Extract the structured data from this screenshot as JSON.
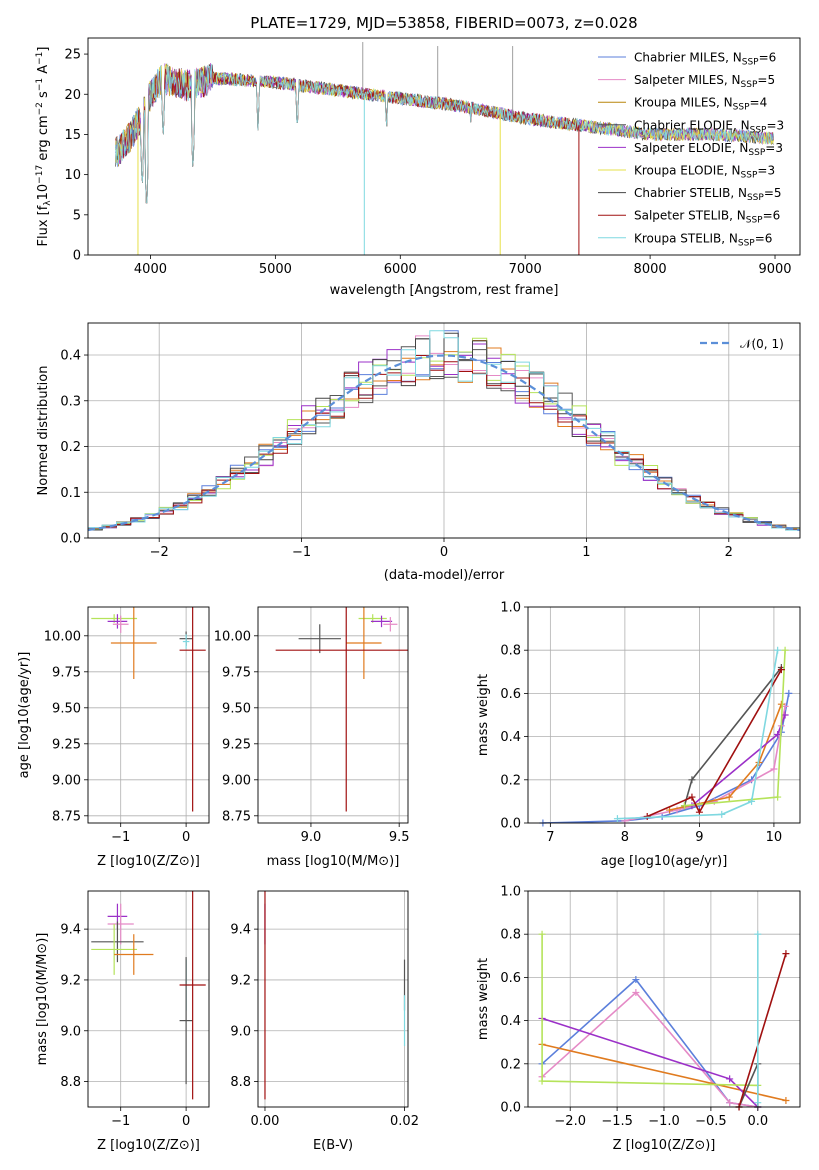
{
  "figure_title": "PLATE=1729, MJD=53858, FIBERID=0073, z=0.028",
  "colors": {
    "chabrier_miles": "#5b7fdb",
    "salpeter_miles": "#e58ac6",
    "kroupa_miles": "#b8860b",
    "chabrier_elodie": "#555555",
    "salpeter_elodie": "#9b30c8",
    "kroupa_elodie": "#e6e04a",
    "chabrier_stelib": "#444444",
    "salpeter_stelib": "#a01010",
    "kroupa_stelib": "#7fd8e0",
    "orange": "#e07b1f",
    "lime": "#b5e35a",
    "gauss": "#5b8fd8",
    "grid": "#b0b0b0"
  },
  "chart_data": [
    {
      "id": "spectrum",
      "type": "line",
      "title": "PLATE=1729, MJD=53858, FIBERID=0073, z=0.028",
      "xlabel": "wavelength [Angstrom, rest frame]",
      "ylabel": "Flux [f_λ 10^-17 erg cm^-2 s^-1 A^-1]",
      "xlim": [
        3500,
        9200
      ],
      "ylim": [
        0,
        27
      ],
      "xticks": [
        "4000",
        "5000",
        "6000",
        "7000",
        "8000",
        "9000"
      ],
      "yticks": [
        "0",
        "5",
        "10",
        "15",
        "20",
        "25"
      ],
      "grid": false,
      "legend_position": "top-right",
      "legend": [
        {
          "main": "Chabrier MILES, N",
          "sub": "SSP",
          "tail": "=6",
          "color": "#5b7fdb"
        },
        {
          "main": "Salpeter MILES, N",
          "sub": "SSP",
          "tail": "=5",
          "color": "#e58ac6"
        },
        {
          "main": "Kroupa MILES, N",
          "sub": "SSP",
          "tail": "=4",
          "color": "#b8860b"
        },
        {
          "main": "Chabrier ELODIE, N",
          "sub": "SSP",
          "tail": "=3",
          "color": "#555555"
        },
        {
          "main": "Salpeter ELODIE, N",
          "sub": "SSP",
          "tail": "=3",
          "color": "#9b30c8"
        },
        {
          "main": "Kroupa ELODIE, N",
          "sub": "SSP",
          "tail": "=3",
          "color": "#e6e04a"
        },
        {
          "main": "Chabrier STELIB, N",
          "sub": "SSP",
          "tail": "=5",
          "color": "#444444"
        },
        {
          "main": "Salpeter STELIB, N",
          "sub": "SSP",
          "tail": "=6",
          "color": "#a01010"
        },
        {
          "main": "Kroupa STELIB, N",
          "sub": "SSP",
          "tail": "=6",
          "color": "#7fd8e0"
        }
      ],
      "continuum": [
        [
          3750,
          13
        ],
        [
          3850,
          15
        ],
        [
          3950,
          18
        ],
        [
          4000,
          20
        ],
        [
          4100,
          22
        ],
        [
          4300,
          21
        ],
        [
          4500,
          22
        ],
        [
          5000,
          21.5
        ],
        [
          5500,
          20.5
        ],
        [
          6000,
          19.5
        ],
        [
          6500,
          18.5
        ],
        [
          7000,
          17
        ],
        [
          7500,
          16
        ],
        [
          8000,
          15
        ],
        [
          8500,
          15
        ],
        [
          9000,
          14.5
        ]
      ],
      "absorption_lines": [
        [
          3934,
          8
        ],
        [
          3969,
          5
        ],
        [
          4102,
          14
        ],
        [
          4340,
          10
        ],
        [
          4861,
          15
        ],
        [
          5175,
          15
        ],
        [
          5890,
          15
        ],
        [
          6563,
          16
        ]
      ],
      "spikes_down": [
        [
          3900,
          0
        ],
        [
          5712,
          0
        ],
        [
          6800,
          0
        ],
        [
          7430,
          0
        ]
      ],
      "spikes_up": [
        [
          5700,
          26.5
        ],
        [
          6300,
          26
        ],
        [
          6900,
          26
        ]
      ]
    },
    {
      "id": "residuals",
      "type": "histogram",
      "xlabel": "(data-model)/error",
      "ylabel": "Normed distribution",
      "xlim": [
        -2.5,
        2.5
      ],
      "ylim": [
        0,
        0.47
      ],
      "xticks": [
        "−2",
        "−1",
        "0",
        "1",
        "2"
      ],
      "yticks": [
        "0.0",
        "0.1",
        "0.2",
        "0.3",
        "0.4"
      ],
      "grid": true,
      "legend_position": "top-right",
      "legend": [
        {
          "label": "𝒩(0, 1)",
          "color": "#5b8fd8",
          "dashed": true
        }
      ],
      "bin_width": 0.1,
      "bin_start": -2.5,
      "series_colors": [
        "#5b7fdb",
        "#e58ac6",
        "#e07b1f",
        "#555555",
        "#9b30c8",
        "#b5e35a",
        "#444444",
        "#a01010",
        "#7fd8e0"
      ]
    },
    {
      "id": "age-vs-Z",
      "type": "scatter",
      "xlabel": "Z [log10(Z/Z⊙)]",
      "ylabel": "age [log10(age/yr)]",
      "xlim": [
        -1.5,
        0.35
      ],
      "ylim": [
        8.7,
        10.2
      ],
      "xticks": [
        "−1",
        "0"
      ],
      "yticks": [
        "8.75",
        "9.00",
        "9.25",
        "9.50",
        "9.75",
        "10.00"
      ],
      "grid": true,
      "points": [
        {
          "x": -1.1,
          "y": 10.12,
          "xerr": 0.35,
          "yerr": 0.03,
          "color": "#b5e35a"
        },
        {
          "x": -1.05,
          "y": 10.1,
          "xerr": 0.15,
          "yerr": 0.05,
          "color": "#9b30c8"
        },
        {
          "x": -1.0,
          "y": 10.08,
          "xerr": 0.12,
          "yerr": 0.06,
          "color": "#e58ac6"
        },
        {
          "x": -0.8,
          "y": 9.95,
          "xerr": 0.35,
          "yerr": 0.25,
          "color": "#e07b1f"
        },
        {
          "x": 0.0,
          "y": 9.98,
          "xerr": 0.1,
          "yerr": 0.05,
          "color": "#555555"
        },
        {
          "x": 0.0,
          "y": 9.96,
          "xerr": 0.05,
          "yerr": 0.05,
          "color": "#7fd8e0"
        },
        {
          "x": 0.1,
          "y": 9.9,
          "xerr": 0.2,
          "yerr": 1.12,
          "color": "#a01010"
        }
      ]
    },
    {
      "id": "age-vs-mass",
      "type": "scatter",
      "xlabel": "mass [log10(M/M⊙)]",
      "ylabel": "",
      "xlim": [
        8.7,
        9.55
      ],
      "ylim": [
        8.7,
        10.2
      ],
      "xticks": [
        "9.0",
        "9.5"
      ],
      "yticks": [
        "8.75",
        "9.00",
        "9.25",
        "9.50",
        "9.75",
        "10.00"
      ],
      "grid": true,
      "points": [
        {
          "x": 9.35,
          "y": 10.12,
          "xerr": 0.08,
          "yerr": 0.03,
          "color": "#b5e35a"
        },
        {
          "x": 9.4,
          "y": 10.1,
          "xerr": 0.06,
          "yerr": 0.04,
          "color": "#9b30c8"
        },
        {
          "x": 9.45,
          "y": 10.08,
          "xerr": 0.04,
          "yerr": 0.05,
          "color": "#e58ac6"
        },
        {
          "x": 9.3,
          "y": 9.95,
          "xerr": 0.1,
          "yerr": 0.25,
          "color": "#e07b1f"
        },
        {
          "x": 9.05,
          "y": 9.98,
          "xerr": 0.12,
          "yerr": 0.1,
          "color": "#555555"
        },
        {
          "x": 9.2,
          "y": 9.9,
          "xerr": 0.4,
          "yerr": 1.12,
          "color": "#a01010"
        }
      ]
    },
    {
      "id": "mass-weight-vs-age",
      "type": "line",
      "xlabel": "age [log10(age/yr)]",
      "ylabel": "mass weight",
      "xlim": [
        6.7,
        10.35
      ],
      "ylim": [
        0,
        1.0
      ],
      "xticks": [
        "7",
        "8",
        "9",
        "10"
      ],
      "yticks": [
        "0.0",
        "0.2",
        "0.4",
        "0.6",
        "0.8",
        "1.0"
      ],
      "grid": true,
      "series": [
        {
          "color": "#5b7fdb",
          "x": [
            6.9,
            8.0,
            8.5,
            9.0,
            9.7,
            10.1,
            10.2
          ],
          "y": [
            0.0,
            0.01,
            0.03,
            0.08,
            0.2,
            0.42,
            0.6
          ]
        },
        {
          "color": "#e58ac6",
          "x": [
            8.0,
            8.7,
            9.2,
            10.0,
            10.1,
            10.15
          ],
          "y": [
            0.01,
            0.06,
            0.1,
            0.25,
            0.45,
            0.54
          ]
        },
        {
          "color": "#e07b1f",
          "x": [
            8.6,
            9.4,
            9.8,
            10.1
          ],
          "y": [
            0.06,
            0.12,
            0.28,
            0.55
          ]
        },
        {
          "color": "#555555",
          "x": [
            8.8,
            8.9,
            10.1
          ],
          "y": [
            0.08,
            0.2,
            0.72
          ]
        },
        {
          "color": "#9b30c8",
          "x": [
            8.9,
            10.05,
            10.15
          ],
          "y": [
            0.08,
            0.41,
            0.5
          ]
        },
        {
          "color": "#b5e35a",
          "x": [
            8.8,
            10.05,
            10.15
          ],
          "y": [
            0.08,
            0.12,
            0.8
          ]
        },
        {
          "color": "#a01010",
          "x": [
            8.3,
            8.9,
            9.0,
            10.1
          ],
          "y": [
            0.03,
            0.12,
            0.05,
            0.71
          ]
        },
        {
          "color": "#7fd8e0",
          "x": [
            7.9,
            9.3,
            9.7,
            10.05
          ],
          "y": [
            0.02,
            0.04,
            0.1,
            0.8
          ]
        }
      ]
    },
    {
      "id": "mass-vs-Z",
      "type": "scatter",
      "xlabel": "Z [log10(Z/Z⊙)]",
      "ylabel": "mass [log10(M/M⊙)]",
      "xlim": [
        -1.5,
        0.35
      ],
      "ylim": [
        8.7,
        9.55
      ],
      "xticks": [
        "−1",
        "0"
      ],
      "yticks": [
        "8.8",
        "9.0",
        "9.2",
        "9.4"
      ],
      "grid": true,
      "points": [
        {
          "x": -1.05,
          "y": 9.45,
          "xerr": 0.15,
          "yerr": 0.05,
          "color": "#9b30c8"
        },
        {
          "x": -1.0,
          "y": 9.42,
          "xerr": 0.2,
          "yerr": 0.08,
          "color": "#e58ac6"
        },
        {
          "x": -1.05,
          "y": 9.35,
          "xerr": 0.4,
          "yerr": 0.08,
          "color": "#555555"
        },
        {
          "x": -1.1,
          "y": 9.32,
          "xerr": 0.35,
          "yerr": 0.1,
          "color": "#b5e35a"
        },
        {
          "x": -0.8,
          "y": 9.3,
          "xerr": 0.3,
          "yerr": 0.08,
          "color": "#e07b1f"
        },
        {
          "x": 0.0,
          "y": 9.18,
          "xerr": 0.05,
          "yerr": 0.1,
          "color": "#7fd8e0"
        },
        {
          "x": 0.0,
          "y": 9.04,
          "xerr": 0.1,
          "yerr": 0.25,
          "color": "#555555"
        },
        {
          "x": 0.1,
          "y": 9.18,
          "xerr": 0.2,
          "yerr": 0.45,
          "color": "#a01010"
        }
      ]
    },
    {
      "id": "mass-vs-EBV",
      "type": "scatter",
      "xlabel": "E(B-V)",
      "ylabel": "",
      "xlim": [
        -0.001,
        0.0205
      ],
      "ylim": [
        8.7,
        9.55
      ],
      "xticks": [
        "0.00",
        "0.02"
      ],
      "yticks": [
        "8.8",
        "9.0",
        "9.2",
        "9.4"
      ],
      "grid": true,
      "points": [
        {
          "x": 0.0,
          "y": 9.42,
          "xerr": 0.0,
          "yerr": 0.08,
          "color": "#9b30c8"
        },
        {
          "x": 0.0,
          "y": 9.18,
          "xerr": 0.0,
          "yerr": 0.45,
          "color": "#a01010"
        },
        {
          "x": 0.02,
          "y": 9.18,
          "xerr": 0.0,
          "yerr": 0.1,
          "color": "#555555"
        },
        {
          "x": 0.02,
          "y": 9.04,
          "xerr": 0.0,
          "yerr": 0.1,
          "color": "#7fd8e0"
        }
      ]
    },
    {
      "id": "mass-weight-vs-Z",
      "type": "line",
      "xlabel": "Z [log10(Z/Z⊙)]",
      "ylabel": "mass weight",
      "xlim": [
        -2.45,
        0.45
      ],
      "ylim": [
        0,
        1.0
      ],
      "xticks": [
        "−2.0",
        "−1.5",
        "−1.0",
        "−0.5",
        "0.0"
      ],
      "yticks": [
        "0.0",
        "0.2",
        "0.4",
        "0.6",
        "0.8",
        "1.0"
      ],
      "grid": true,
      "series": [
        {
          "color": "#5b7fdb",
          "x": [
            -2.3,
            -1.3,
            -0.3,
            0.0
          ],
          "y": [
            0.2,
            0.59,
            0.02,
            0.0
          ]
        },
        {
          "color": "#e58ac6",
          "x": [
            -2.3,
            -1.3,
            -0.3,
            0.0
          ],
          "y": [
            0.14,
            0.53,
            0.02,
            0.0
          ]
        },
        {
          "color": "#e07b1f",
          "x": [
            -2.3,
            0.3
          ],
          "y": [
            0.29,
            0.03
          ]
        },
        {
          "color": "#9b30c8",
          "x": [
            -2.3,
            -0.3,
            0.0
          ],
          "y": [
            0.41,
            0.13,
            0.0
          ]
        },
        {
          "color": "#b5e35a",
          "x": [
            -2.3,
            -2.3,
            0.0
          ],
          "y": [
            0.8,
            0.12,
            0.1
          ]
        },
        {
          "color": "#555555",
          "x": [
            -0.2,
            0.0,
            0.0
          ],
          "y": [
            0.0,
            0.2,
            0.0
          ]
        },
        {
          "color": "#a01010",
          "x": [
            -0.2,
            0.3
          ],
          "y": [
            0.0,
            0.71
          ]
        },
        {
          "color": "#7fd8e0",
          "x": [
            0.0,
            0.0
          ],
          "y": [
            0.8,
            0.02
          ]
        }
      ]
    }
  ]
}
